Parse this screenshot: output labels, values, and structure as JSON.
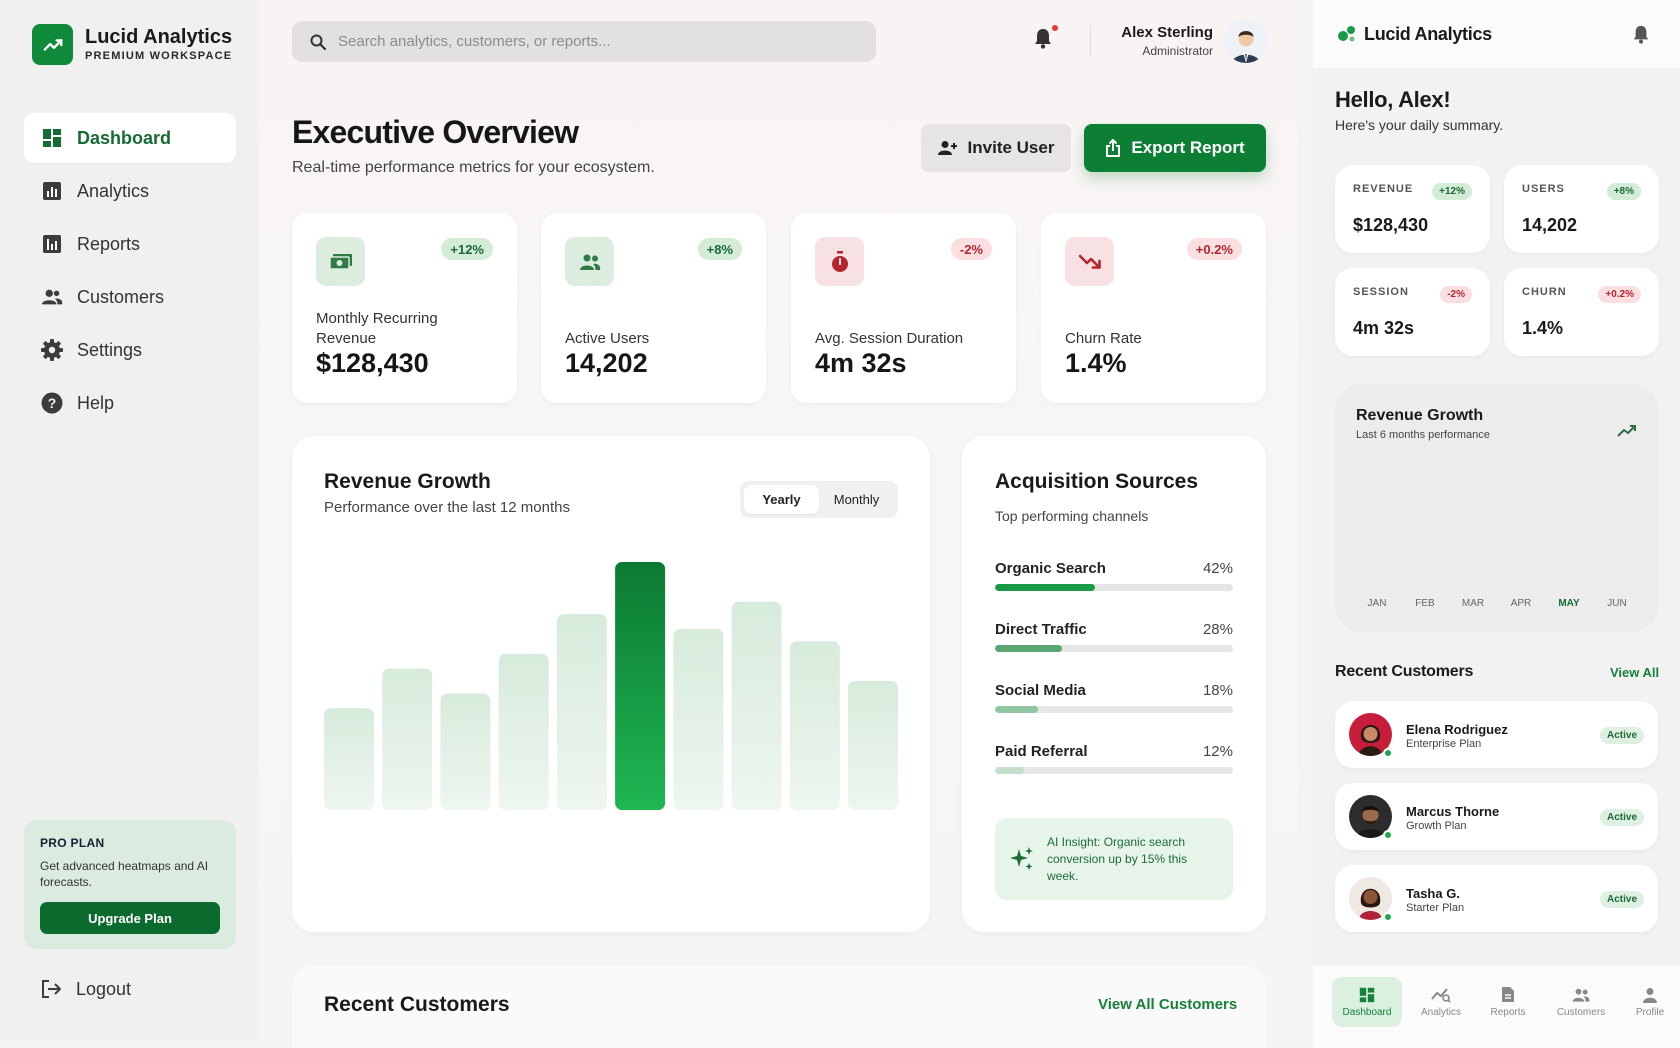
{
  "brand": {
    "name": "Lucid Analytics",
    "subtitle": "PREMIUM WORKSPACE"
  },
  "sidebar": {
    "items": [
      {
        "label": "Dashboard",
        "icon": "dashboard-icon",
        "active": true
      },
      {
        "label": "Analytics",
        "icon": "bar-chart-icon"
      },
      {
        "label": "Reports",
        "icon": "report-icon"
      },
      {
        "label": "Customers",
        "icon": "people-icon"
      },
      {
        "label": "Settings",
        "icon": "gear-icon"
      },
      {
        "label": "Help",
        "icon": "help-icon"
      }
    ],
    "pro": {
      "title": "PRO PLAN",
      "desc": "Get advanced heatmaps and AI forecasts.",
      "button": "Upgrade Plan"
    },
    "logout": "Logout"
  },
  "topbar": {
    "search_placeholder": "Search analytics, customers, or reports...",
    "user_name": "Alex Sterling",
    "user_role": "Administrator"
  },
  "header": {
    "title": "Executive Overview",
    "subtitle": "Real-time performance metrics for your ecosystem.",
    "invite_label": "Invite User",
    "export_label": "Export Report"
  },
  "kpis": [
    {
      "label": "Monthly Recurring Revenue",
      "value": "$128,430",
      "badge": "+12%",
      "trend": "positive",
      "icon": "money-icon"
    },
    {
      "label": "Active Users",
      "value": "14,202",
      "badge": "+8%",
      "trend": "positive",
      "icon": "users-icon"
    },
    {
      "label": "Avg. Session Duration",
      "value": "4m 32s",
      "badge": "-2%",
      "trend": "negative",
      "icon": "timer-icon"
    },
    {
      "label": "Churn Rate",
      "value": "1.4%",
      "badge": "+0.2%",
      "trend": "negative",
      "icon": "trending-down-icon"
    }
  ],
  "revenue": {
    "title": "Revenue Growth",
    "subtitle": "Performance over the last 12 months",
    "toggle": [
      "Yearly",
      "Monthly"
    ],
    "bar_levels": [
      0.41,
      0.57,
      0.47,
      0.63,
      0.79,
      1.0,
      0.73,
      0.84,
      0.68,
      0.52
    ],
    "highlight_index": 5
  },
  "acquisition": {
    "title": "Acquisition Sources",
    "subtitle": "Top performing channels",
    "sources": [
      {
        "name": "Organic Search",
        "pct_label": "42%",
        "pct": 42,
        "color": "#1a9a46"
      },
      {
        "name": "Direct Traffic",
        "pct_label": "28%",
        "pct": 28,
        "color": "#5aa574"
      },
      {
        "name": "Social Media",
        "pct_label": "18%",
        "pct": 18,
        "color": "#8fc59f"
      },
      {
        "name": "Paid Referral",
        "pct_label": "12%",
        "pct": 12,
        "color": "#c4dfcc"
      }
    ],
    "insight": "AI Insight: Organic search conversion up by 15% this week."
  },
  "recent_customers": {
    "title": "Recent Customers",
    "link": "View All Customers"
  },
  "mobile": {
    "brand": "Lucid Analytics",
    "greeting": "Hello, Alex!",
    "greeting_sub": "Here's your daily summary.",
    "kpis": [
      {
        "label": "REVENUE",
        "badge": "+12%",
        "value": "$128,430",
        "trend": "positive"
      },
      {
        "label": "USERS",
        "badge": "+8%",
        "value": "14,202",
        "trend": "positive"
      },
      {
        "label": "SESSION",
        "badge": "-2%",
        "value": "4m 32s",
        "trend": "negative"
      },
      {
        "label": "CHURN",
        "badge": "+0.2%",
        "value": "1.4%",
        "trend": "negative"
      }
    ],
    "revenue": {
      "title": "Revenue Growth",
      "subtitle": "Last 6 months performance",
      "months": [
        "JAN",
        "FEB",
        "MAR",
        "APR",
        "MAY",
        "JUN"
      ],
      "active_month": "MAY"
    },
    "recent": {
      "title": "Recent Customers",
      "link": "View All",
      "customers": [
        {
          "name": "Elena Rodriguez",
          "plan": "Enterprise Plan",
          "status": "Active"
        },
        {
          "name": "Marcus Thorne",
          "plan": "Growth Plan",
          "status": "Active"
        },
        {
          "name": "Tasha G.",
          "plan": "Starter Plan",
          "status": "Active"
        }
      ]
    },
    "nav": [
      "Dashboard",
      "Analytics",
      "Reports",
      "Customers",
      "Profile"
    ]
  },
  "colors": {
    "brand_green": "#0e8a3a",
    "accent_green": "#17803a",
    "negative": "#b3262d"
  }
}
